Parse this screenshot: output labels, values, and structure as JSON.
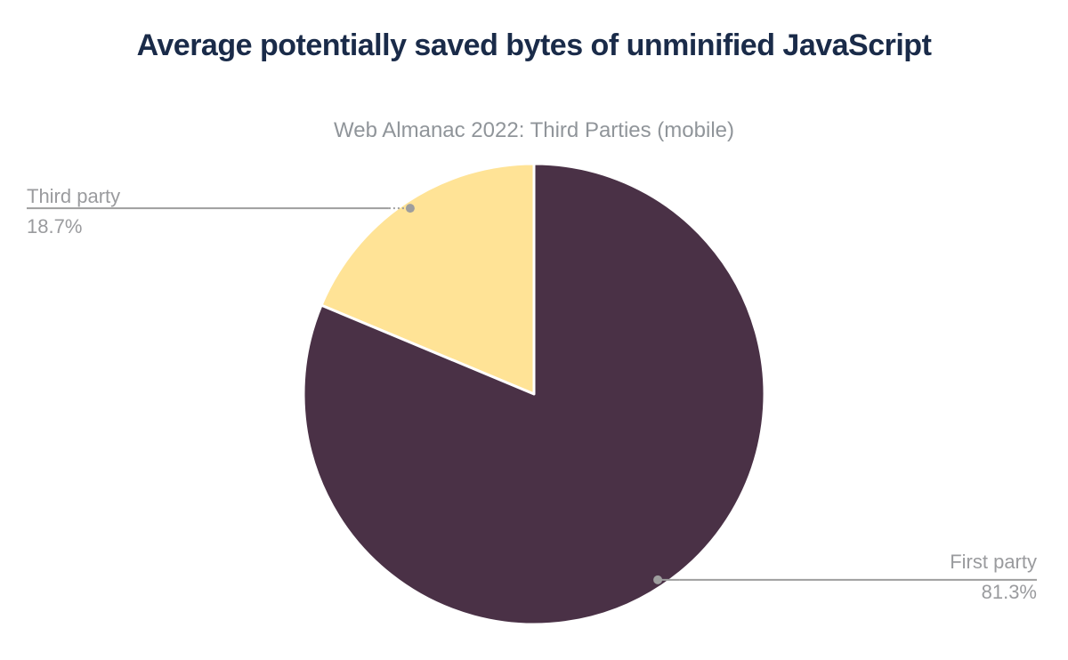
{
  "header": {
    "title": "Average potentially saved bytes of unminified JavaScript",
    "subtitle": "Web Almanac 2022: Third Parties (mobile)",
    "title_color": "#1a2b49",
    "subtitle_color": "#90959a"
  },
  "chart_data": {
    "type": "pie",
    "title": "Average potentially saved bytes of unminified JavaScript",
    "subtitle": "Web Almanac 2022: Third Parties (mobile)",
    "start_angle": "top",
    "direction": "counterclockwise",
    "legend": "none",
    "labels": "external-callouts-with-leader-lines",
    "slices": [
      {
        "label": "Third party",
        "value_percent": 18.7,
        "display": "18.7%",
        "color": "#ffe396"
      },
      {
        "label": "First party",
        "value_percent": 81.3,
        "display": "81.3%",
        "color": "#4a3146"
      }
    ],
    "slice_gap_color": "#ffffff",
    "callout_line_color": "#9e9e9e",
    "label_text_color": "#9a9b9e"
  }
}
